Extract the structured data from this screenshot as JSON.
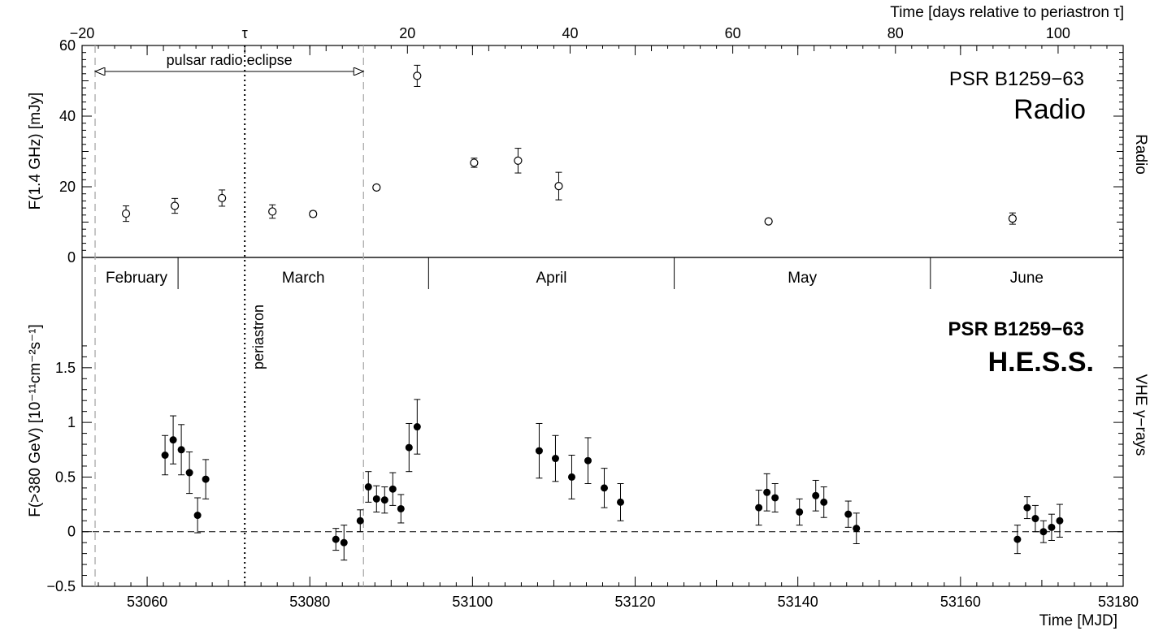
{
  "chart_data": [
    {
      "type": "scatter",
      "panel": "radio",
      "title_line1": "PSR B1259−63",
      "title_line2": "Radio",
      "side_label": "Radio",
      "ylabel": "F(1.4 GHz) [mJy]",
      "top_axis_label": "Time [days relative to periastron τ]",
      "top_ticks": [
        "−20",
        "τ",
        "20",
        "40",
        "60",
        "80",
        "100"
      ],
      "top_tick_values": [
        -20,
        0,
        20,
        40,
        60,
        80,
        100
      ],
      "periastron_mjd": 53072.0,
      "ylim": [
        0,
        60
      ],
      "yticks": [
        "0",
        "20",
        "40",
        "60"
      ],
      "eclipse_label": "pulsar radio eclipse",
      "eclipse_range_mjd": [
        53053.6,
        53086.6
      ],
      "series": [
        {
          "marker": "open-circle",
          "x": [
            53057.4,
            53063.4,
            53069.2,
            53075.4,
            53080.4,
            53088.2,
            53093.2,
            53100.2,
            53105.6,
            53110.6,
            53136.4,
            53166.4
          ],
          "y": [
            12.4,
            14.6,
            16.8,
            13.0,
            12.3,
            19.8,
            51.4,
            26.8,
            27.4,
            20.2,
            10.2,
            11.0
          ],
          "yerr": [
            2.2,
            2.1,
            2.3,
            1.9,
            0.8,
            0.6,
            3.0,
            1.3,
            3.5,
            3.9,
            0.6,
            1.6
          ]
        }
      ]
    },
    {
      "type": "scatter",
      "panel": "hess",
      "title_line1": "PSR B1259−63",
      "title_line2": "H.E.S.S.",
      "side_label": "VHE γ−rays",
      "ylabel": "F(>380 GeV) [10⁻¹¹cm⁻²s⁻¹]",
      "xlabel": "Time [MJD]",
      "xlim": [
        53052,
        53180
      ],
      "xticks": [
        "53060",
        "53080",
        "53100",
        "53120",
        "53140",
        "53160",
        "53180"
      ],
      "xtick_values": [
        53060,
        53080,
        53100,
        53120,
        53140,
        53160,
        53180
      ],
      "ylim": [
        -0.5,
        1.9
      ],
      "yticks": [
        "−0.5",
        "0",
        "0.5",
        "1",
        "1.5"
      ],
      "ytick_values": [
        -0.5,
        0,
        0.5,
        1,
        1.5
      ],
      "periastron_label": "periastron",
      "months": [
        "February",
        "March",
        "April",
        "May",
        "June"
      ],
      "month_boundaries_mjd": [
        53063.8,
        53094.6,
        53124.8,
        53156.3
      ],
      "series": [
        {
          "marker": "filled-circle",
          "x": [
            53062.2,
            53063.2,
            53064.2,
            53065.2,
            53066.2,
            53067.2,
            53083.2,
            53084.2,
            53086.2,
            53087.2,
            53088.2,
            53089.2,
            53090.2,
            53091.2,
            53092.2,
            53093.2,
            53108.2,
            53110.2,
            53112.2,
            53114.2,
            53116.2,
            53118.2,
            53135.2,
            53136.2,
            53137.2,
            53140.2,
            53142.2,
            53143.2,
            53146.2,
            53147.2,
            53167.0,
            53168.2,
            53169.2,
            53170.2,
            53171.2,
            53172.2
          ],
          "y": [
            0.7,
            0.84,
            0.75,
            0.54,
            0.15,
            0.48,
            -0.07,
            -0.1,
            0.1,
            0.41,
            0.3,
            0.29,
            0.39,
            0.21,
            0.77,
            0.96,
            0.74,
            0.67,
            0.5,
            0.65,
            0.4,
            0.27,
            0.22,
            0.36,
            0.31,
            0.18,
            0.33,
            0.27,
            0.16,
            0.03,
            -0.07,
            0.22,
            0.12,
            0.0,
            0.04,
            0.1
          ],
          "yerr": [
            0.18,
            0.22,
            0.23,
            0.19,
            0.16,
            0.18,
            0.1,
            0.16,
            0.1,
            0.14,
            0.12,
            0.12,
            0.15,
            0.13,
            0.22,
            0.25,
            0.25,
            0.21,
            0.2,
            0.21,
            0.18,
            0.17,
            0.16,
            0.17,
            0.13,
            0.12,
            0.14,
            0.14,
            0.12,
            0.14,
            0.13,
            0.1,
            0.12,
            0.1,
            0.12,
            0.15
          ]
        }
      ]
    }
  ]
}
